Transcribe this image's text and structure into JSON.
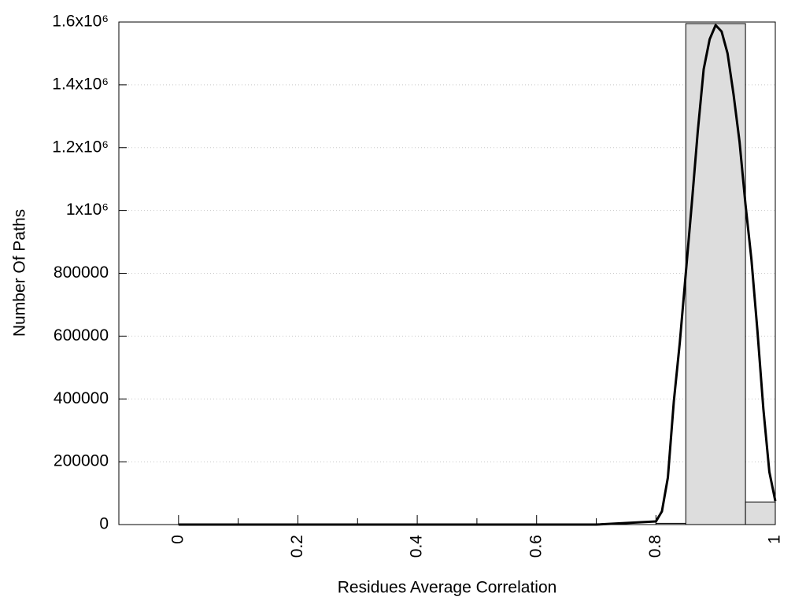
{
  "chart_data": {
    "type": "histogram",
    "xlabel": "Residues Average Correlation",
    "ylabel": "Number Of Paths",
    "bins": [
      0.8,
      0.85,
      0.95,
      1.0
    ],
    "values": [
      4000,
      1595000,
      72000
    ],
    "color": "#dddddd",
    "curve": {
      "type": "line",
      "color": "#000000",
      "x": [
        0,
        0.7,
        0.8,
        0.81,
        0.82,
        0.83,
        0.84,
        0.85,
        0.86,
        0.87,
        0.88,
        0.89,
        0.9,
        0.91,
        0.92,
        0.93,
        0.94,
        0.95,
        0.96,
        0.97,
        0.98,
        0.99,
        1.0
      ],
      "values": [
        0,
        0,
        10000,
        42000,
        150000,
        393000,
        580000,
        800000,
        1020000,
        1250000,
        1450000,
        1545000,
        1590000,
        1570000,
        1500000,
        1370000,
        1220000,
        1020000,
        844000,
        618000,
        368000,
        168000,
        75000
      ]
    },
    "xlim": [
      -0.1,
      1
    ],
    "xticks": [
      0,
      0.2,
      0.4,
      0.6,
      0.8,
      1
    ],
    "xminor_ticks": [
      0.1,
      0.3,
      0.5,
      0.7,
      0.9
    ],
    "ylim": [
      0,
      1600000
    ],
    "yticks": [
      0,
      200000,
      400000,
      600000,
      800000,
      {
        "value": 1000000,
        "label": "1x10⁶"
      },
      {
        "value": 1200000,
        "label": "1.2x10⁶"
      },
      {
        "value": 1400000,
        "label": "1.4x10⁶"
      },
      {
        "value": 1600000,
        "label": "1.6x10⁶"
      }
    ],
    "grid": true
  }
}
